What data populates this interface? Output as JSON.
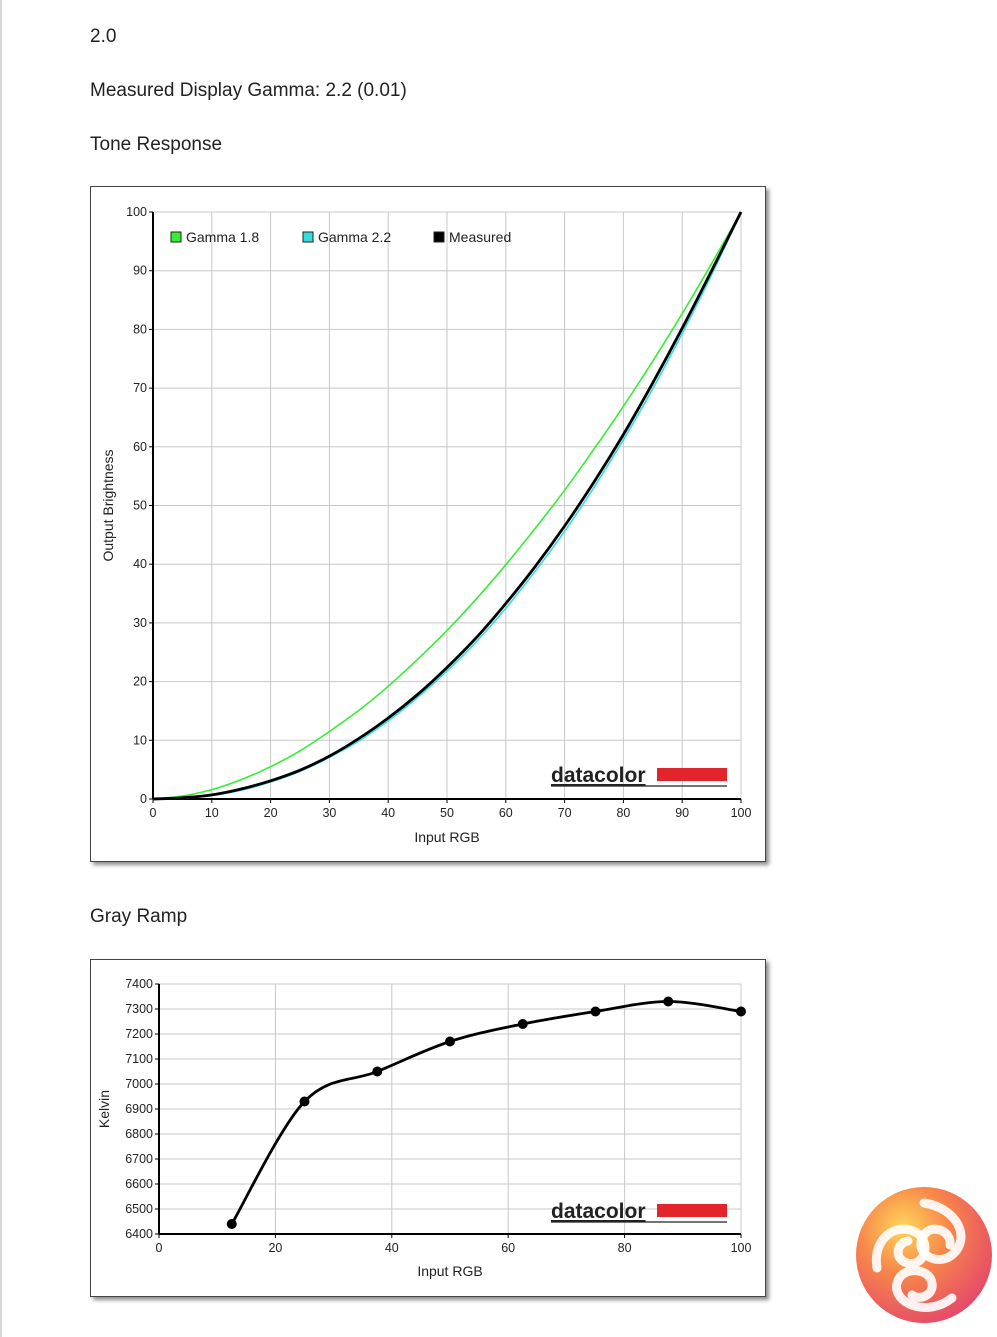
{
  "page": {
    "value_heading": "2.0",
    "gamma_line": "Measured Display Gamma: 2.2 (0.01)",
    "tone_heading": "Tone Response",
    "gray_heading": "Gray Ramp"
  },
  "chart_data": [
    {
      "type": "line",
      "xlabel": "Input RGB",
      "ylabel": "Output Brightness",
      "xlim": [
        0,
        100
      ],
      "ylim": [
        0,
        100
      ],
      "x_ticks": [
        "0",
        "10",
        "20",
        "30",
        "40",
        "50",
        "60",
        "70",
        "80",
        "90",
        "100"
      ],
      "y_ticks": [
        "0",
        "10",
        "20",
        "30",
        "40",
        "50",
        "60",
        "70",
        "80",
        "90",
        "100"
      ],
      "grid": true,
      "legend_position": "top-left",
      "watermark": "datacolor",
      "series": [
        {
          "name": "Gamma 1.8",
          "color": "#33ee33",
          "x": [
            0,
            5,
            10,
            15,
            20,
            25,
            30,
            35,
            40,
            45,
            50,
            55,
            60,
            65,
            70,
            75,
            80,
            85,
            90,
            95,
            100
          ],
          "y": [
            0,
            0.5,
            1.6,
            3.3,
            5.5,
            8.2,
            11.5,
            15.1,
            19.2,
            23.8,
            28.7,
            34.1,
            39.9,
            46.1,
            52.6,
            59.6,
            66.9,
            74.6,
            82.7,
            91.2,
            100
          ]
        },
        {
          "name": "Gamma 2.2",
          "color": "#33dddd",
          "x": [
            0,
            5,
            10,
            15,
            20,
            25,
            30,
            35,
            40,
            45,
            50,
            55,
            60,
            65,
            70,
            75,
            80,
            85,
            90,
            95,
            100
          ],
          "y": [
            0,
            0.1,
            0.6,
            1.5,
            2.9,
            4.7,
            7.1,
            9.9,
            13.3,
            17.3,
            21.8,
            26.8,
            32.5,
            38.8,
            45.6,
            53.1,
            61.2,
            69.9,
            79.3,
            89.3,
            100
          ]
        },
        {
          "name": "Measured",
          "color": "#000000",
          "x": [
            0,
            5,
            10,
            15,
            20,
            25,
            30,
            35,
            40,
            45,
            50,
            55,
            60,
            65,
            70,
            75,
            80,
            85,
            90,
            95,
            100
          ],
          "y": [
            0,
            0.2,
            0.7,
            1.7,
            3.1,
            4.9,
            7.3,
            10.3,
            13.8,
            17.8,
            22.4,
            27.5,
            33.3,
            39.6,
            46.5,
            54.0,
            62.1,
            70.9,
            80.2,
            90.0,
            100
          ]
        }
      ]
    },
    {
      "type": "line",
      "xlabel": "Input RGB",
      "ylabel": "Kelvin",
      "xlim": [
        0,
        100
      ],
      "ylim": [
        6400,
        7400
      ],
      "x_ticks": [
        "0",
        "20",
        "40",
        "60",
        "80",
        "100"
      ],
      "y_ticks": [
        "6400",
        "6500",
        "6600",
        "6700",
        "6800",
        "6900",
        "7000",
        "7100",
        "7200",
        "7300",
        "7400"
      ],
      "grid": true,
      "watermark": "datacolor",
      "series": [
        {
          "color": "#000000",
          "x": [
            12.5,
            25,
            37.5,
            50,
            62.5,
            75,
            87.5,
            100
          ],
          "y": [
            6440,
            6930,
            7050,
            7170,
            7240,
            7290,
            7330,
            7290
          ]
        }
      ]
    }
  ]
}
